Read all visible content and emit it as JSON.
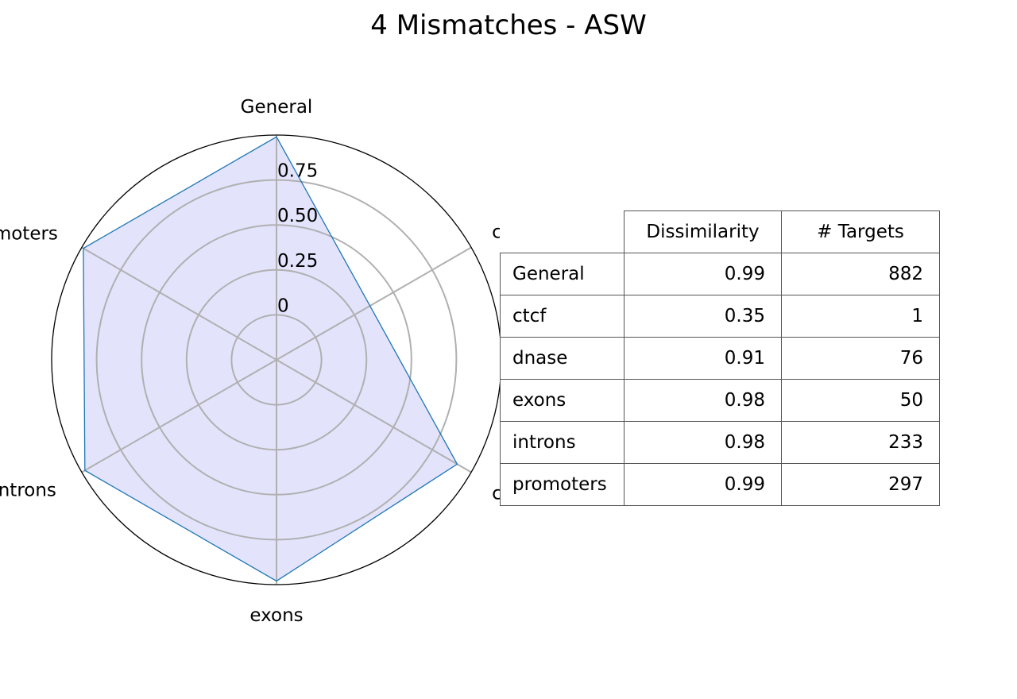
{
  "chart_data": {
    "type": "radar",
    "title": "4 Mismatches - ASW",
    "categories": [
      "General",
      "ctcf",
      "dnase",
      "exons",
      "introns",
      "promoters"
    ],
    "visible_category_labels": [
      "General",
      "ctcf",
      "c",
      "exons",
      "ntrons",
      "moters"
    ],
    "series": [
      {
        "values": [
          0.99,
          0.35,
          0.91,
          0.98,
          0.98,
          0.99
        ]
      }
    ],
    "radial_ticks": [
      "0",
      "0.25",
      "0.50",
      "0.75"
    ],
    "rlim": [
      -0.25,
      1.0
    ],
    "grid": true,
    "colors": {
      "line": "#1f77b4",
      "fill": "#e3e3fc",
      "grid": "#b0b0b0",
      "frame": "#000000"
    },
    "table": {
      "columns": [
        "Dissimilarity",
        "# Targets"
      ],
      "rows": [
        {
          "label": "General",
          "dissimilarity": "0.99",
          "targets": "882"
        },
        {
          "label": "ctcf",
          "dissimilarity": "0.35",
          "targets": "1"
        },
        {
          "label": "dnase",
          "dissimilarity": "0.91",
          "targets": "76"
        },
        {
          "label": "exons",
          "dissimilarity": "0.98",
          "targets": "50"
        },
        {
          "label": "introns",
          "dissimilarity": "0.98",
          "targets": "233"
        },
        {
          "label": "promoters",
          "dissimilarity": "0.99",
          "targets": "297"
        }
      ]
    }
  }
}
